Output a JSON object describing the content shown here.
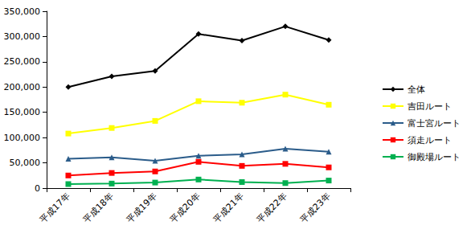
{
  "chart_data": {
    "type": "line",
    "categories": [
      "平成17年",
      "平成18年",
      "平成19年",
      "平成20年",
      "平成21年",
      "平成22年",
      "平成23年"
    ],
    "series": [
      {
        "name": "全体",
        "color": "#000000",
        "marker": "diamond",
        "values": [
          200000,
          221000,
          232000,
          305000,
          292000,
          320000,
          293000
        ]
      },
      {
        "name": "吉田ルート",
        "color": "#ffff00",
        "marker": "square",
        "values": [
          108000,
          119000,
          133000,
          172000,
          169000,
          185000,
          165000
        ]
      },
      {
        "name": "富士宮ルート",
        "color": "#2b5c8a",
        "marker": "triangle",
        "values": [
          58000,
          61000,
          54000,
          64000,
          67000,
          78000,
          72000
        ]
      },
      {
        "name": "須走ルート",
        "color": "#ff0000",
        "marker": "square",
        "values": [
          25000,
          30000,
          33000,
          52000,
          44000,
          48000,
          41000
        ]
      },
      {
        "name": "御殿場ルート",
        "color": "#00b050",
        "marker": "square",
        "values": [
          8000,
          9000,
          11000,
          17000,
          12000,
          10000,
          15000
        ]
      }
    ],
    "ylim": [
      0,
      350000
    ],
    "yticks": [
      0,
      {
        "value": 50000,
        "label": "50,000"
      },
      {
        "value": 100000,
        "label": "100,000"
      },
      {
        "value": 150000,
        "label": "150,000"
      },
      {
        "value": 200000,
        "label": "200,000"
      },
      {
        "value": 250000,
        "label": "250,000"
      },
      {
        "value": 300000,
        "label": "300,000"
      },
      {
        "value": 350000,
        "label": "350,000"
      }
    ],
    "grid": false,
    "legend": "right"
  }
}
